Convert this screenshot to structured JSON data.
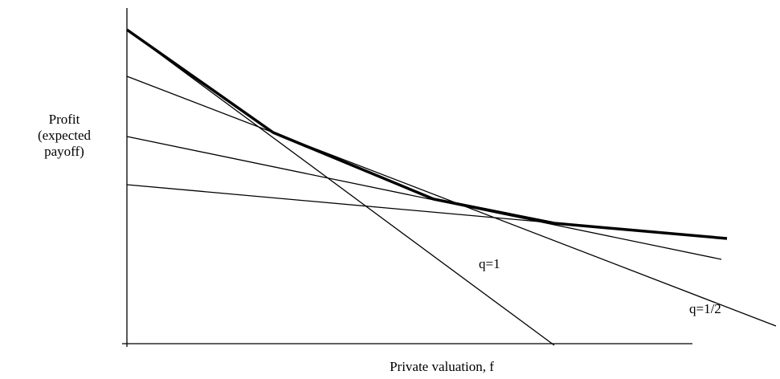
{
  "y_axis_label": [
    "Profit",
    "(expected",
    "payoff)"
  ],
  "x_axis_label": "Private valuation, f",
  "line_labels": [
    "q=1",
    "q=1/2"
  ]
}
